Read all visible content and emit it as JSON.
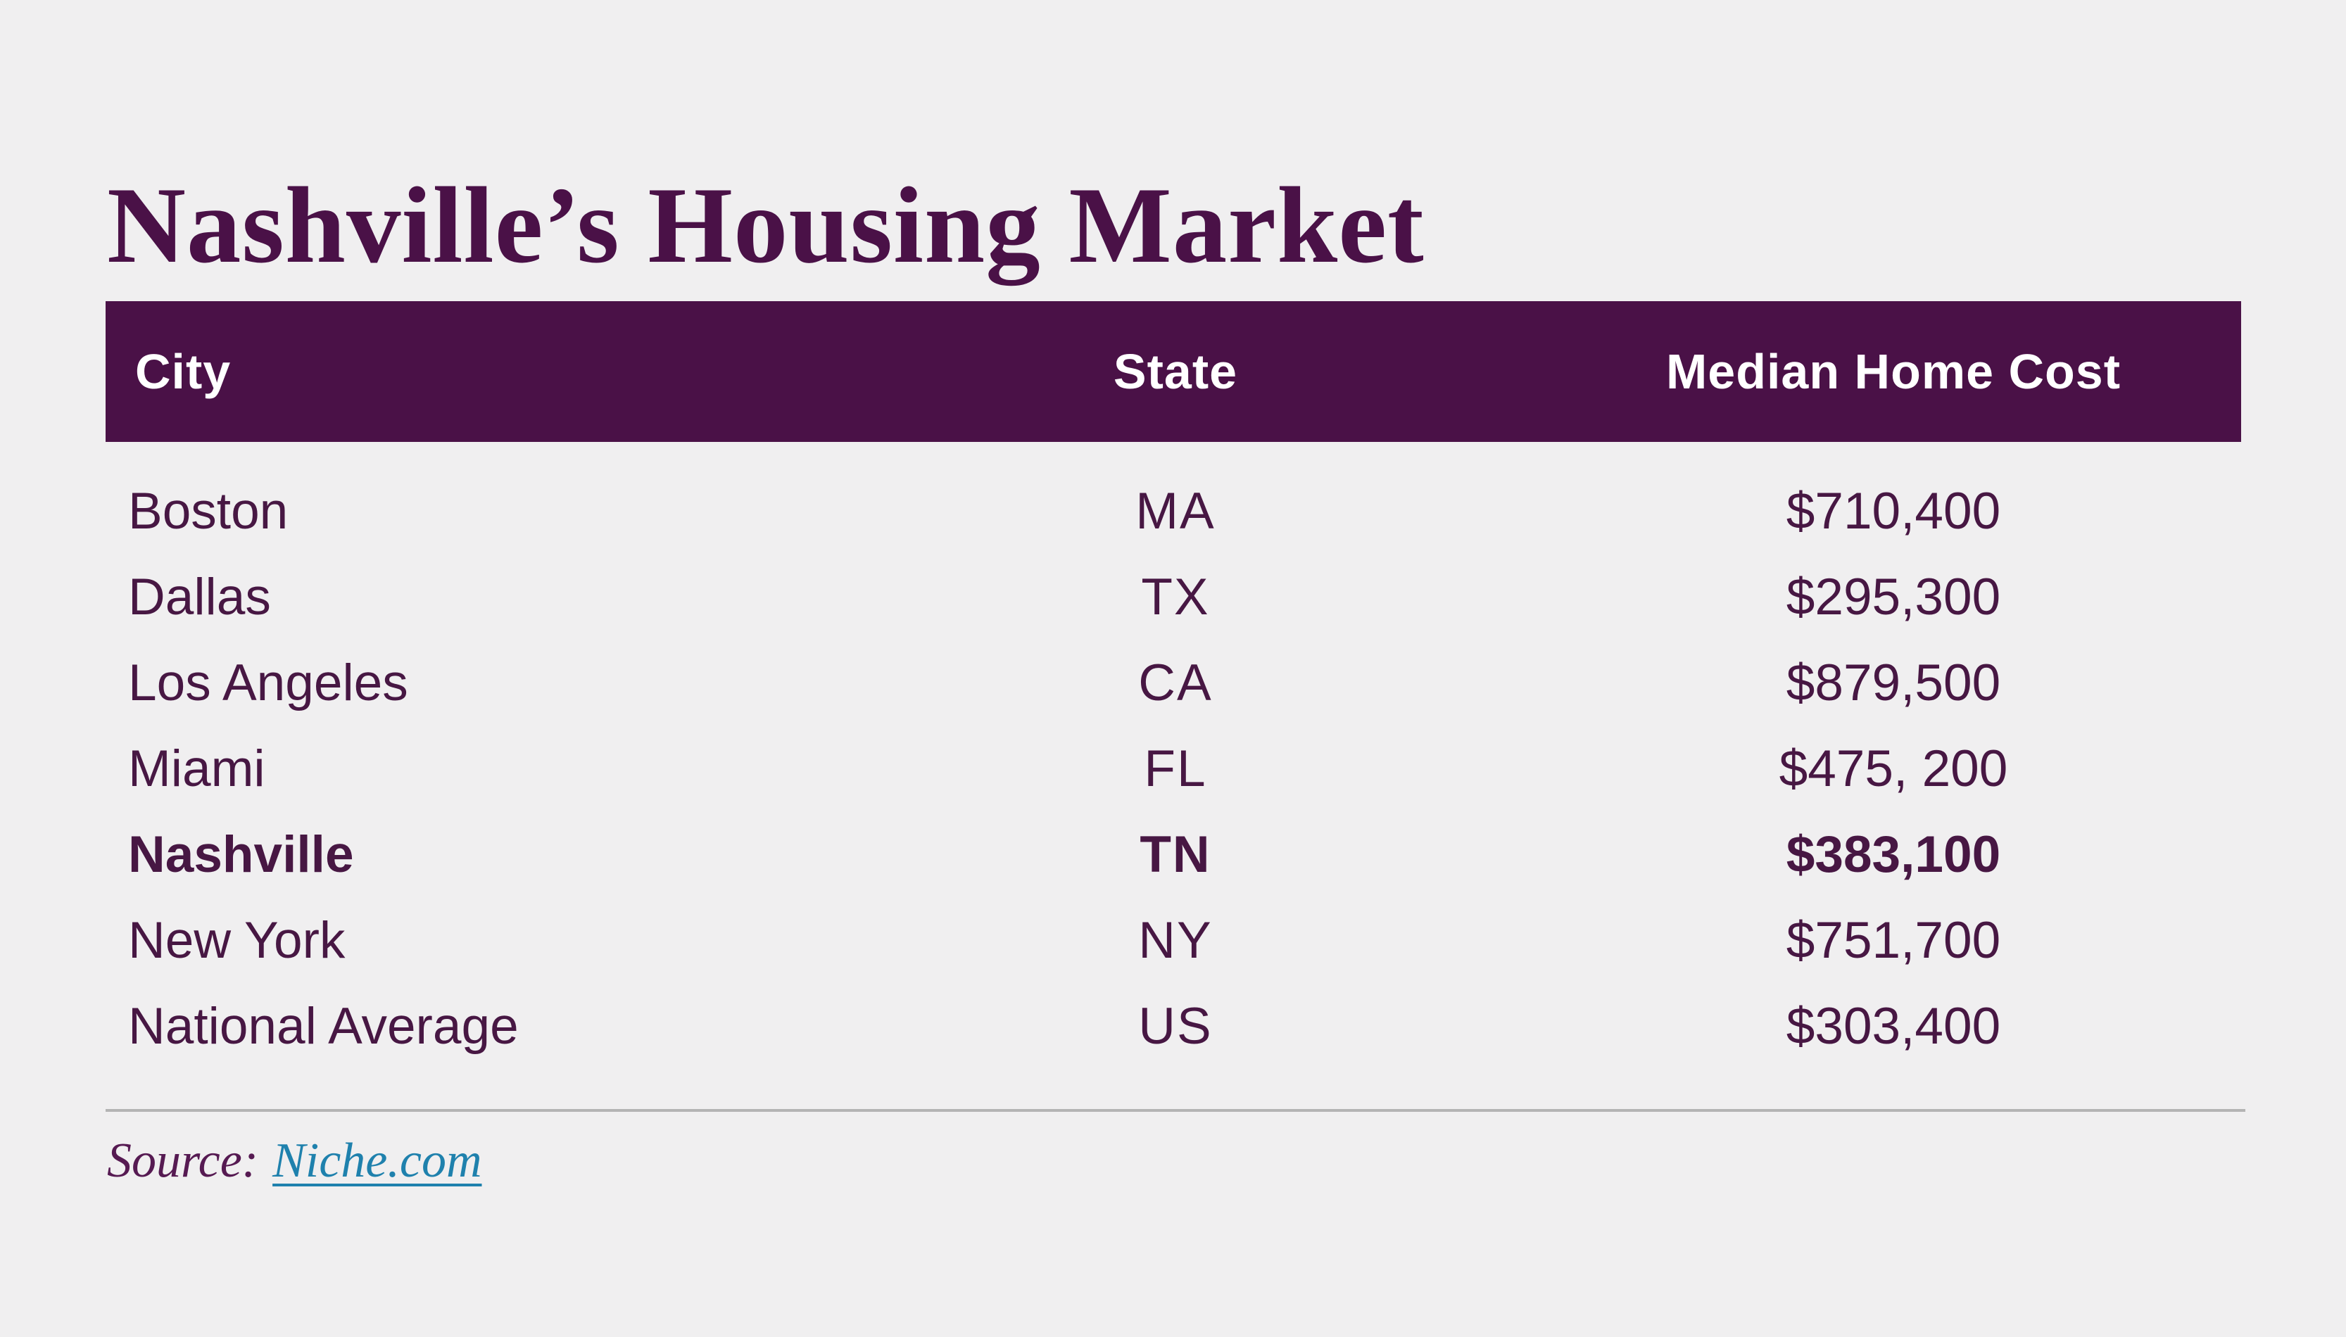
{
  "title": "Nashville’s Housing Market",
  "table": {
    "columns": {
      "city": "City",
      "state": "State",
      "cost": "Median Home Cost"
    },
    "rows": [
      {
        "city": "Boston",
        "state": "MA",
        "cost": "$710,400"
      },
      {
        "city": "Dallas",
        "state": "TX",
        "cost": "$295,300"
      },
      {
        "city": "Los Angeles",
        "state": "CA",
        "cost": "$879,500"
      },
      {
        "city": "Miami",
        "state": "FL",
        "cost": "$475, 200"
      },
      {
        "city": "Nashville",
        "state": "TN",
        "cost": "$383,100"
      },
      {
        "city": "New York",
        "state": "NY",
        "cost": "$751,700"
      },
      {
        "city": "National Average",
        "state": "US",
        "cost": "$303,400"
      }
    ],
    "highlighted_city": "Nashville"
  },
  "source": {
    "label": "Source:",
    "link_text": "Niche.com"
  },
  "colors": {
    "background": "#f0eff0",
    "primary_purple": "#4a1147",
    "body_text": "#471743",
    "header_text": "#ffffff",
    "link_teal": "#1f81ad",
    "divider_gray": "#b4b4b4"
  },
  "chart_data": {
    "type": "table",
    "title": "Nashville’s Housing Market",
    "columns": [
      "City",
      "State",
      "Median Home Cost"
    ],
    "rows": [
      [
        "Boston",
        "MA",
        "$710,400"
      ],
      [
        "Dallas",
        "TX",
        "$295,300"
      ],
      [
        "Los Angeles",
        "CA",
        "$879,500"
      ],
      [
        "Miami",
        "FL",
        "$475, 200"
      ],
      [
        "Nashville",
        "TN",
        "$383,100"
      ],
      [
        "New York",
        "NY",
        "$751,700"
      ],
      [
        "National Average",
        "US",
        "$303,400"
      ]
    ],
    "values_numeric": {
      "Boston": 710400,
      "Dallas": 295300,
      "Los Angeles": 879500,
      "Miami": 475200,
      "Nashville": 383100,
      "New York": 751700,
      "National Average": 303400
    },
    "highlighted_row": "Nashville",
    "source": "Niche.com"
  }
}
